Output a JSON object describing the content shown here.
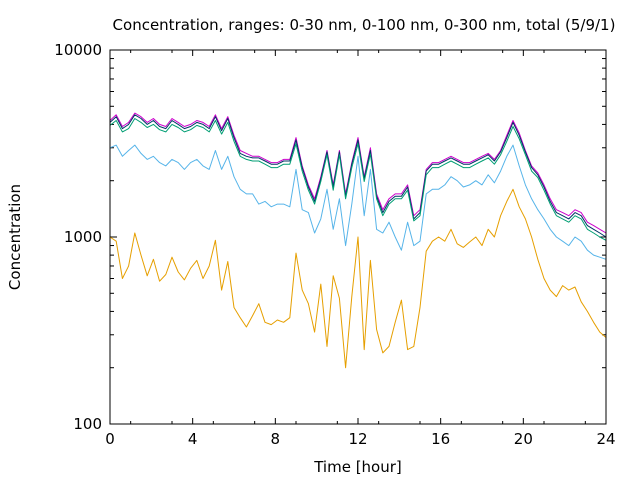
{
  "chart_data": {
    "type": "line",
    "title": "Concentration, ranges: 0-30 nm, 0-100 nm, 0-300 nm, total (5/9/1)",
    "xlabel": "Time [hour]",
    "ylabel": "Concentration",
    "xlim": [
      0,
      24
    ],
    "ylim": [
      100,
      10000
    ],
    "yscale": "log",
    "grid": false,
    "x_ticks": [
      0,
      4,
      8,
      12,
      16,
      20,
      24
    ],
    "x_tick_labels": [
      "0",
      "4",
      "8",
      "12",
      "16",
      "20",
      "24"
    ],
    "y_ticks": [
      100,
      1000,
      10000
    ],
    "y_tick_labels": [
      "100",
      "1000",
      "10000"
    ],
    "series": [
      {
        "color": "#cc00cc",
        "x": [
          0,
          0.3,
          0.6,
          0.9,
          1.2,
          1.5,
          1.8,
          2.1,
          2.4,
          2.7,
          3.0,
          3.3,
          3.6,
          3.9,
          4.2,
          4.5,
          4.8,
          5.1,
          5.4,
          5.7,
          6.0,
          6.3,
          6.6,
          6.9,
          7.2,
          7.5,
          7.8,
          8.1,
          8.4,
          8.7,
          9.0,
          9.3,
          9.6,
          9.9,
          10.2,
          10.5,
          10.8,
          11.1,
          11.4,
          11.7,
          12.0,
          12.3,
          12.6,
          12.9,
          13.2,
          13.5,
          13.8,
          14.1,
          14.4,
          14.7,
          15.0,
          15.3,
          15.6,
          15.9,
          16.2,
          16.5,
          16.8,
          17.1,
          17.4,
          17.7,
          18.0,
          18.3,
          18.6,
          18.9,
          19.2,
          19.5,
          19.8,
          20.1,
          20.4,
          20.7,
          21.0,
          21.3,
          21.6,
          21.9,
          22.2,
          22.5,
          22.8,
          23.1,
          23.4,
          23.7,
          24.0
        ],
        "values": [
          4200,
          4500,
          3900,
          4100,
          4600,
          4400,
          4100,
          4300,
          4000,
          3900,
          4300,
          4100,
          3900,
          4000,
          4200,
          4100,
          3900,
          4500,
          3800,
          4400,
          3500,
          2900,
          2800,
          2700,
          2700,
          2600,
          2500,
          2500,
          2600,
          2600,
          3400,
          2400,
          1900,
          1600,
          2100,
          2900,
          1900,
          2900,
          1700,
          2500,
          3400,
          2100,
          3000,
          1700,
          1400,
          1600,
          1700,
          1700,
          1900,
          1300,
          1400,
          2300,
          2500,
          2500,
          2600,
          2700,
          2600,
          2500,
          2500,
          2600,
          2700,
          2800,
          2600,
          2900,
          3500,
          4200,
          3600,
          2900,
          2400,
          2200,
          1900,
          1600,
          1400,
          1350,
          1300,
          1400,
          1350,
          1200,
          1150,
          1100,
          1050
        ]
      },
      {
        "color": "#003366",
        "x": [
          0,
          0.3,
          0.6,
          0.9,
          1.2,
          1.5,
          1.8,
          2.1,
          2.4,
          2.7,
          3.0,
          3.3,
          3.6,
          3.9,
          4.2,
          4.5,
          4.8,
          5.1,
          5.4,
          5.7,
          6.0,
          6.3,
          6.6,
          6.9,
          7.2,
          7.5,
          7.8,
          8.1,
          8.4,
          8.7,
          9.0,
          9.3,
          9.6,
          9.9,
          10.2,
          10.5,
          10.8,
          11.1,
          11.4,
          11.7,
          12.0,
          12.3,
          12.6,
          12.9,
          13.2,
          13.5,
          13.8,
          14.1,
          14.4,
          14.7,
          15.0,
          15.3,
          15.6,
          15.9,
          16.2,
          16.5,
          16.8,
          17.1,
          17.4,
          17.7,
          18.0,
          18.3,
          18.6,
          18.9,
          19.2,
          19.5,
          19.8,
          20.1,
          20.4,
          20.7,
          21.0,
          21.3,
          21.6,
          21.9,
          22.2,
          22.5,
          22.8,
          23.1,
          23.4,
          23.7,
          24.0
        ],
        "values": [
          4100,
          4400,
          3800,
          4000,
          4500,
          4300,
          4000,
          4200,
          3900,
          3800,
          4200,
          4000,
          3800,
          3900,
          4100,
          4000,
          3800,
          4400,
          3700,
          4300,
          3400,
          2800,
          2700,
          2650,
          2650,
          2550,
          2450,
          2450,
          2550,
          2550,
          3300,
          2350,
          1850,
          1550,
          2050,
          2850,
          1850,
          2850,
          1650,
          2450,
          3300,
          2050,
          2900,
          1650,
          1350,
          1550,
          1650,
          1650,
          1850,
          1250,
          1350,
          2250,
          2450,
          2450,
          2550,
          2650,
          2550,
          2450,
          2450,
          2550,
          2650,
          2750,
          2550,
          2850,
          3400,
          4100,
          3500,
          2850,
          2350,
          2150,
          1850,
          1550,
          1350,
          1300,
          1250,
          1350,
          1300,
          1150,
          1100,
          1050,
          1000
        ]
      },
      {
        "color": "#009e73",
        "x": [
          0,
          0.3,
          0.6,
          0.9,
          1.2,
          1.5,
          1.8,
          2.1,
          2.4,
          2.7,
          3.0,
          3.3,
          3.6,
          3.9,
          4.2,
          4.5,
          4.8,
          5.1,
          5.4,
          5.7,
          6.0,
          6.3,
          6.6,
          6.9,
          7.2,
          7.5,
          7.8,
          8.1,
          8.4,
          8.7,
          9.0,
          9.3,
          9.6,
          9.9,
          10.2,
          10.5,
          10.8,
          11.1,
          11.4,
          11.7,
          12.0,
          12.3,
          12.6,
          12.9,
          13.2,
          13.5,
          13.8,
          14.1,
          14.4,
          14.7,
          15.0,
          15.3,
          15.6,
          15.9,
          16.2,
          16.5,
          16.8,
          17.1,
          17.4,
          17.7,
          18.0,
          18.3,
          18.6,
          18.9,
          19.2,
          19.5,
          19.8,
          20.1,
          20.4,
          20.7,
          21.0,
          21.3,
          21.6,
          21.9,
          22.2,
          22.5,
          22.8,
          23.1,
          23.4,
          23.7,
          24.0
        ],
        "values": [
          3950,
          4200,
          3650,
          3800,
          4300,
          4100,
          3850,
          4000,
          3750,
          3650,
          4000,
          3850,
          3650,
          3750,
          3950,
          3850,
          3650,
          4200,
          3550,
          4100,
          3250,
          2700,
          2600,
          2550,
          2550,
          2450,
          2350,
          2350,
          2450,
          2450,
          3150,
          2250,
          1780,
          1500,
          1980,
          2750,
          1780,
          2750,
          1600,
          2350,
          3150,
          1980,
          2780,
          1600,
          1300,
          1500,
          1600,
          1600,
          1780,
          1220,
          1300,
          2150,
          2350,
          2350,
          2450,
          2550,
          2450,
          2350,
          2350,
          2450,
          2550,
          2650,
          2450,
          2750,
          3250,
          3900,
          3350,
          2750,
          2250,
          2080,
          1780,
          1500,
          1300,
          1250,
          1200,
          1300,
          1250,
          1100,
          1050,
          1000,
          960
        ]
      },
      {
        "color": "#56b4e9",
        "x": [
          0,
          0.3,
          0.6,
          0.9,
          1.2,
          1.5,
          1.8,
          2.1,
          2.4,
          2.7,
          3.0,
          3.3,
          3.6,
          3.9,
          4.2,
          4.5,
          4.8,
          5.1,
          5.4,
          5.7,
          6.0,
          6.3,
          6.6,
          6.9,
          7.2,
          7.5,
          7.8,
          8.1,
          8.4,
          8.7,
          9.0,
          9.3,
          9.6,
          9.9,
          10.2,
          10.5,
          10.8,
          11.1,
          11.4,
          11.7,
          12.0,
          12.3,
          12.6,
          12.9,
          13.2,
          13.5,
          13.8,
          14.1,
          14.4,
          14.7,
          15.0,
          15.3,
          15.6,
          15.9,
          16.2,
          16.5,
          16.8,
          17.1,
          17.4,
          17.7,
          18.0,
          18.3,
          18.6,
          18.9,
          19.2,
          19.5,
          19.8,
          20.1,
          20.4,
          20.7,
          21.0,
          21.3,
          21.6,
          21.9,
          22.2,
          22.5,
          22.8,
          23.1,
          23.4,
          23.7,
          24.0
        ],
        "values": [
          3000,
          3100,
          2700,
          2900,
          3100,
          2800,
          2600,
          2700,
          2500,
          2400,
          2600,
          2500,
          2300,
          2500,
          2600,
          2400,
          2300,
          2900,
          2300,
          2700,
          2100,
          1800,
          1700,
          1700,
          1500,
          1550,
          1450,
          1500,
          1500,
          1450,
          2300,
          1400,
          1350,
          1050,
          1250,
          1800,
          1100,
          1600,
          900,
          1500,
          2700,
          1300,
          2300,
          1100,
          1050,
          1200,
          1000,
          850,
          1200,
          900,
          950,
          1700,
          1800,
          1800,
          1900,
          2100,
          2000,
          1850,
          1900,
          2000,
          1900,
          2150,
          1950,
          2250,
          2700,
          3100,
          2400,
          1900,
          1600,
          1400,
          1250,
          1100,
          1000,
          950,
          900,
          1000,
          950,
          850,
          800,
          780,
          760
        ]
      },
      {
        "color": "#e69f00",
        "x": [
          0,
          0.3,
          0.6,
          0.9,
          1.2,
          1.5,
          1.8,
          2.1,
          2.4,
          2.7,
          3.0,
          3.3,
          3.6,
          3.9,
          4.2,
          4.5,
          4.8,
          5.1,
          5.4,
          5.7,
          6.0,
          6.3,
          6.6,
          6.9,
          7.2,
          7.5,
          7.8,
          8.1,
          8.4,
          8.7,
          9.0,
          9.3,
          9.6,
          9.9,
          10.2,
          10.5,
          10.8,
          11.1,
          11.4,
          11.7,
          12.0,
          12.3,
          12.6,
          12.9,
          13.2,
          13.5,
          13.8,
          14.1,
          14.4,
          14.7,
          15.0,
          15.3,
          15.6,
          15.9,
          16.2,
          16.5,
          16.8,
          17.1,
          17.4,
          17.7,
          18.0,
          18.3,
          18.6,
          18.9,
          19.2,
          19.5,
          19.8,
          20.1,
          20.4,
          20.7,
          21.0,
          21.3,
          21.6,
          21.9,
          22.2,
          22.5,
          22.8,
          23.1,
          23.4,
          23.7,
          24.0
        ],
        "values": [
          1000,
          950,
          600,
          700,
          1050,
          800,
          620,
          760,
          580,
          630,
          780,
          650,
          590,
          680,
          750,
          600,
          700,
          960,
          520,
          740,
          420,
          370,
          330,
          380,
          440,
          350,
          340,
          360,
          350,
          370,
          820,
          520,
          440,
          310,
          560,
          260,
          620,
          470,
          200,
          480,
          1000,
          250,
          750,
          320,
          240,
          260,
          350,
          460,
          250,
          260,
          420,
          840,
          950,
          1000,
          950,
          1100,
          920,
          880,
          940,
          1000,
          900,
          1100,
          1000,
          1300,
          1550,
          1800,
          1450,
          1250,
          1000,
          760,
          600,
          520,
          480,
          550,
          520,
          540,
          450,
          400,
          350,
          310,
          290
        ]
      }
    ]
  }
}
